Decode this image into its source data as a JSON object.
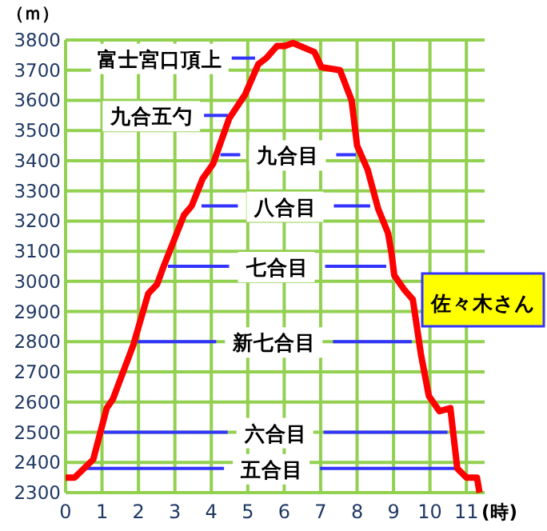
{
  "chart_data": {
    "type": "line",
    "ylabel": "（ｍ）",
    "xlabel": "(時)",
    "xlim": [
      0,
      11.5
    ],
    "xticks": [
      0,
      1,
      2,
      3,
      4,
      5,
      6,
      7,
      8,
      9,
      10,
      11
    ],
    "ylim": [
      2300,
      3800
    ],
    "yticks": [
      2300,
      2400,
      2500,
      2600,
      2700,
      2800,
      2900,
      3000,
      3100,
      3200,
      3300,
      3400,
      3500,
      3600,
      3700,
      3800
    ],
    "grid": true,
    "legend": "right",
    "line_style": "solid",
    "marker": "none",
    "series": [
      {
        "name": "佐々木さん",
        "color": "#ff0000",
        "x": [
          0,
          0.25,
          0.76,
          1.13,
          1.3,
          1.86,
          2.27,
          2.51,
          2.66,
          3.25,
          3.46,
          3.76,
          4.05,
          4.49,
          4.93,
          5.29,
          5.51,
          5.8,
          6.02,
          6.24,
          6.83,
          7.02,
          7.53,
          7.85,
          8.0,
          8.29,
          8.58,
          8.85,
          8.95,
          9.02,
          9.31,
          9.53,
          9.75,
          9.97,
          10.26,
          10.56,
          10.75,
          11.0,
          11.29,
          11.36
        ],
        "values": [
          2350,
          2350,
          2410,
          2580,
          2610,
          2790,
          2960,
          2990,
          3040,
          3220,
          3250,
          3340,
          3390,
          3540,
          3620,
          3720,
          3740,
          3780,
          3780,
          3790,
          3760,
          3710,
          3700,
          3600,
          3450,
          3370,
          3240,
          3160,
          3090,
          3020,
          2970,
          2940,
          2760,
          2620,
          2570,
          2580,
          2380,
          2350,
          2350,
          2300
        ]
      },
      {
        "name": "富士宮口頂上",
        "color": "#3333ff",
        "x": [
          4.56,
          5.2
        ],
        "values": [
          3740,
          3740
        ]
      },
      {
        "name": "九合五勺",
        "color": "#3333ff",
        "x": [
          3.8,
          4.46
        ],
        "values": [
          3550,
          3550
        ]
      },
      {
        "name": "九合目",
        "color": "#3333ff",
        "x": [
          4.25,
          7.97
        ],
        "values": [
          3420,
          3420
        ]
      },
      {
        "name": "八合目",
        "color": "#3333ff",
        "x": [
          3.73,
          8.36
        ],
        "values": [
          3250,
          3250
        ]
      },
      {
        "name": "七合目",
        "color": "#3333ff",
        "x": [
          2.81,
          8.8
        ],
        "values": [
          3050,
          3050
        ]
      },
      {
        "name": "新七合目",
        "color": "#3333ff",
        "x": [
          1.97,
          9.5
        ],
        "values": [
          2800,
          2800
        ]
      },
      {
        "name": "六合目",
        "color": "#3333ff",
        "x": [
          1.05,
          10.48
        ],
        "values": [
          2500,
          2500
        ]
      },
      {
        "name": "五合目",
        "color": "#3333ff",
        "x": [
          0.58,
          10.75
        ],
        "values": [
          2380,
          2380
        ]
      }
    ]
  }
}
